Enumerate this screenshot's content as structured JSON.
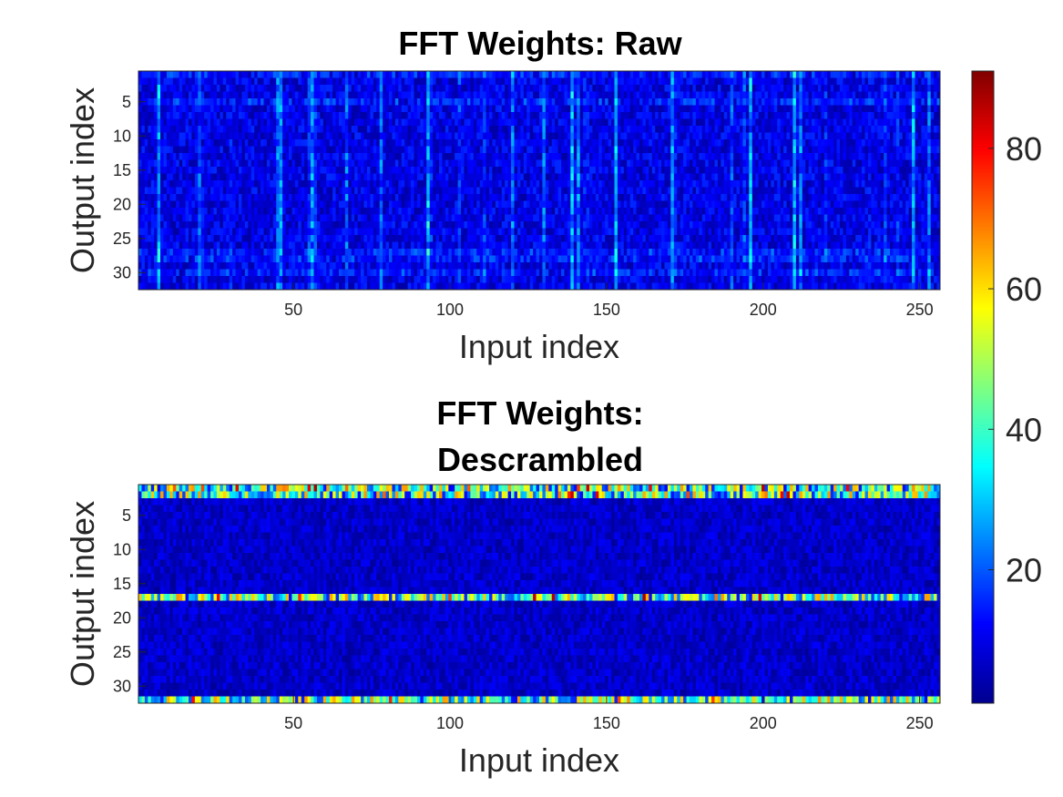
{
  "chart_data": [
    {
      "type": "heatmap",
      "title": "FFT Weights: Raw",
      "xlabel": "Input index",
      "ylabel": "Output index",
      "xlim": [
        1,
        256
      ],
      "ylim": [
        1,
        32
      ],
      "xticks": [
        50,
        100,
        150,
        200,
        250
      ],
      "yticks": [
        5,
        10,
        15,
        20,
        25,
        30
      ],
      "n_cols": 256,
      "n_rows": 32,
      "value_range": [
        1,
        91
      ],
      "description_of_values": "noisy magnitudes mostly 5-20 with scattered column-wise peaks up to ~35",
      "typical_values": {
        "background": 9,
        "bright_columns": 28,
        "bright_rows": [
          1,
          5,
          27,
          28,
          30
        ]
      }
    },
    {
      "type": "heatmap",
      "title_lines": [
        "FFT Weights:",
        "Descrambled"
      ],
      "xlabel": "Input index",
      "ylabel": "Output index",
      "xlim": [
        1,
        256
      ],
      "ylim": [
        1,
        32
      ],
      "xticks": [
        50,
        100,
        150,
        200,
        250
      ],
      "yticks": [
        5,
        10,
        15,
        20,
        25,
        30
      ],
      "n_cols": 256,
      "n_rows": 32,
      "value_range": [
        1,
        91
      ],
      "typical_values": {
        "background": 7,
        "bright_rows": [
          1,
          2,
          17,
          32
        ],
        "bright_row_peak": 85
      }
    }
  ],
  "colorbar": {
    "colormap": "jet",
    "range": [
      1,
      91
    ],
    "ticks": [
      20,
      40,
      60,
      80
    ]
  }
}
